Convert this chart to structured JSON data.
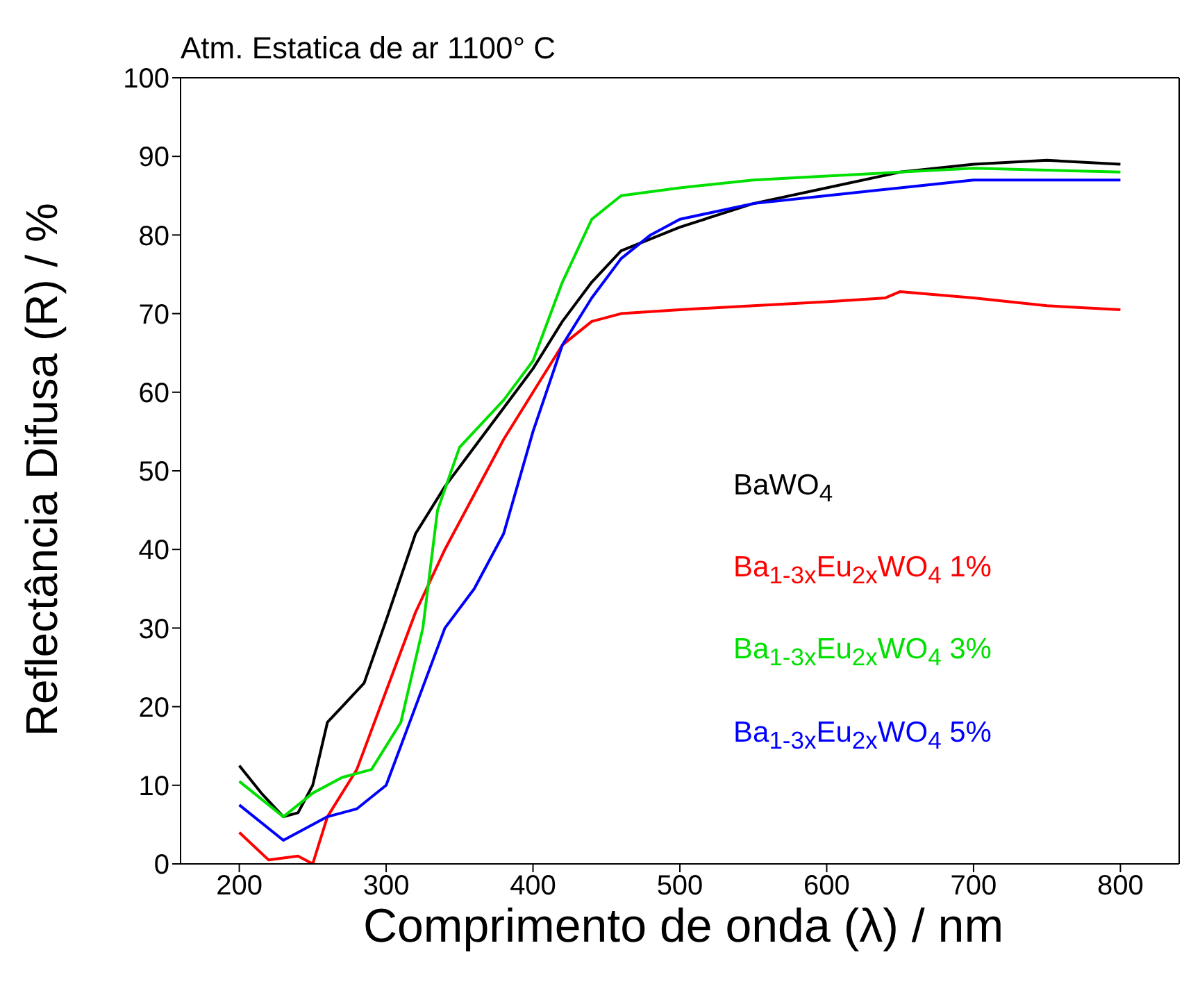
{
  "chart_data": {
    "type": "line",
    "title": "Atm. Estatica de ar 1100° C",
    "xlabel": "Comprimento de onda (λ) / nm",
    "ylabel": "Reflectância Difusa (R) / %",
    "xlim": [
      160,
      840
    ],
    "ylim": [
      0,
      100
    ],
    "xticks": [
      200,
      300,
      400,
      500,
      600,
      700,
      800
    ],
    "yticks": [
      0,
      10,
      20,
      30,
      40,
      50,
      60,
      70,
      80,
      90,
      100
    ],
    "legend": "right",
    "line_style": "solid",
    "series": [
      {
        "name": "BaWO$_{4}$",
        "color": "#000000",
        "x": [
          200,
          215,
          230,
          240,
          250,
          260,
          270,
          285,
          300,
          320,
          340,
          360,
          380,
          400,
          420,
          440,
          460,
          500,
          550,
          600,
          650,
          700,
          750,
          800
        ],
        "values": [
          12.5,
          9,
          6,
          6.5,
          10,
          18,
          20,
          23,
          31,
          42,
          48,
          53,
          58,
          63,
          69,
          74,
          78,
          81,
          84,
          86,
          88,
          89,
          89.5,
          89
        ]
      },
      {
        "name": "Ba$_{1-3x}$Eu$_{2x}$WO$_{4}$ 1%",
        "color": "#ff0000",
        "x": [
          200,
          220,
          240,
          250,
          260,
          280,
          300,
          320,
          340,
          360,
          380,
          400,
          420,
          440,
          460,
          500,
          550,
          600,
          640,
          650,
          700,
          750,
          800
        ],
        "values": [
          4,
          0.5,
          1,
          0,
          6,
          12,
          22,
          32,
          40,
          47,
          54,
          60,
          66,
          69,
          70,
          70.5,
          71,
          71.5,
          72,
          72.8,
          72,
          71,
          70.5
        ]
      },
      {
        "name": "Ba$_{1-3x}$Eu$_{2x}$WO$_{4}$ 3%",
        "color": "#00e000",
        "x": [
          200,
          230,
          250,
          270,
          290,
          310,
          325,
          335,
          350,
          380,
          400,
          420,
          440,
          460,
          500,
          550,
          600,
          650,
          700,
          800
        ],
        "values": [
          10.5,
          6,
          9,
          11,
          12,
          18,
          30,
          45,
          53,
          59,
          64,
          74,
          82,
          85,
          86,
          87,
          87.5,
          88,
          88.5,
          88
        ]
      },
      {
        "name": "Ba$_{1-3x}$Eu$_{2x}$WO$_{4}$ 5%",
        "color": "#0000ff",
        "x": [
          200,
          230,
          260,
          280,
          300,
          320,
          340,
          360,
          380,
          400,
          420,
          440,
          460,
          480,
          500,
          550,
          600,
          650,
          700,
          800
        ],
        "values": [
          7.5,
          3,
          6,
          7,
          10,
          20,
          30,
          35,
          42,
          55,
          66,
          72,
          77,
          80,
          82,
          84,
          85,
          86,
          87,
          87
        ]
      }
    ]
  }
}
